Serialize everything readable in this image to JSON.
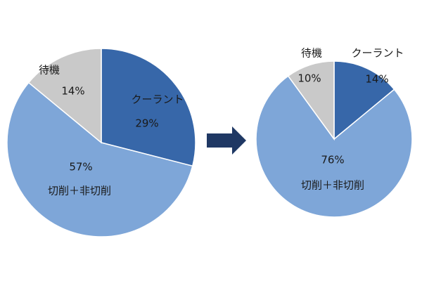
{
  "chart_data": [
    {
      "type": "pie",
      "categories": [
        "クーラント",
        "切削＋非切削",
        "待機"
      ],
      "values": [
        29,
        57,
        14
      ],
      "value_labels": [
        "29%",
        "57%",
        "14%"
      ],
      "colors": [
        "#3767a9",
        "#7ea6d8",
        "#c9c9c9"
      ]
    },
    {
      "type": "pie",
      "categories": [
        "クーラント",
        "切削＋非切削",
        "待機"
      ],
      "values": [
        14,
        76,
        10
      ],
      "value_labels": [
        "14%",
        "76%",
        "10%"
      ],
      "colors": [
        "#3767a9",
        "#7ea6d8",
        "#c9c9c9"
      ]
    }
  ]
}
